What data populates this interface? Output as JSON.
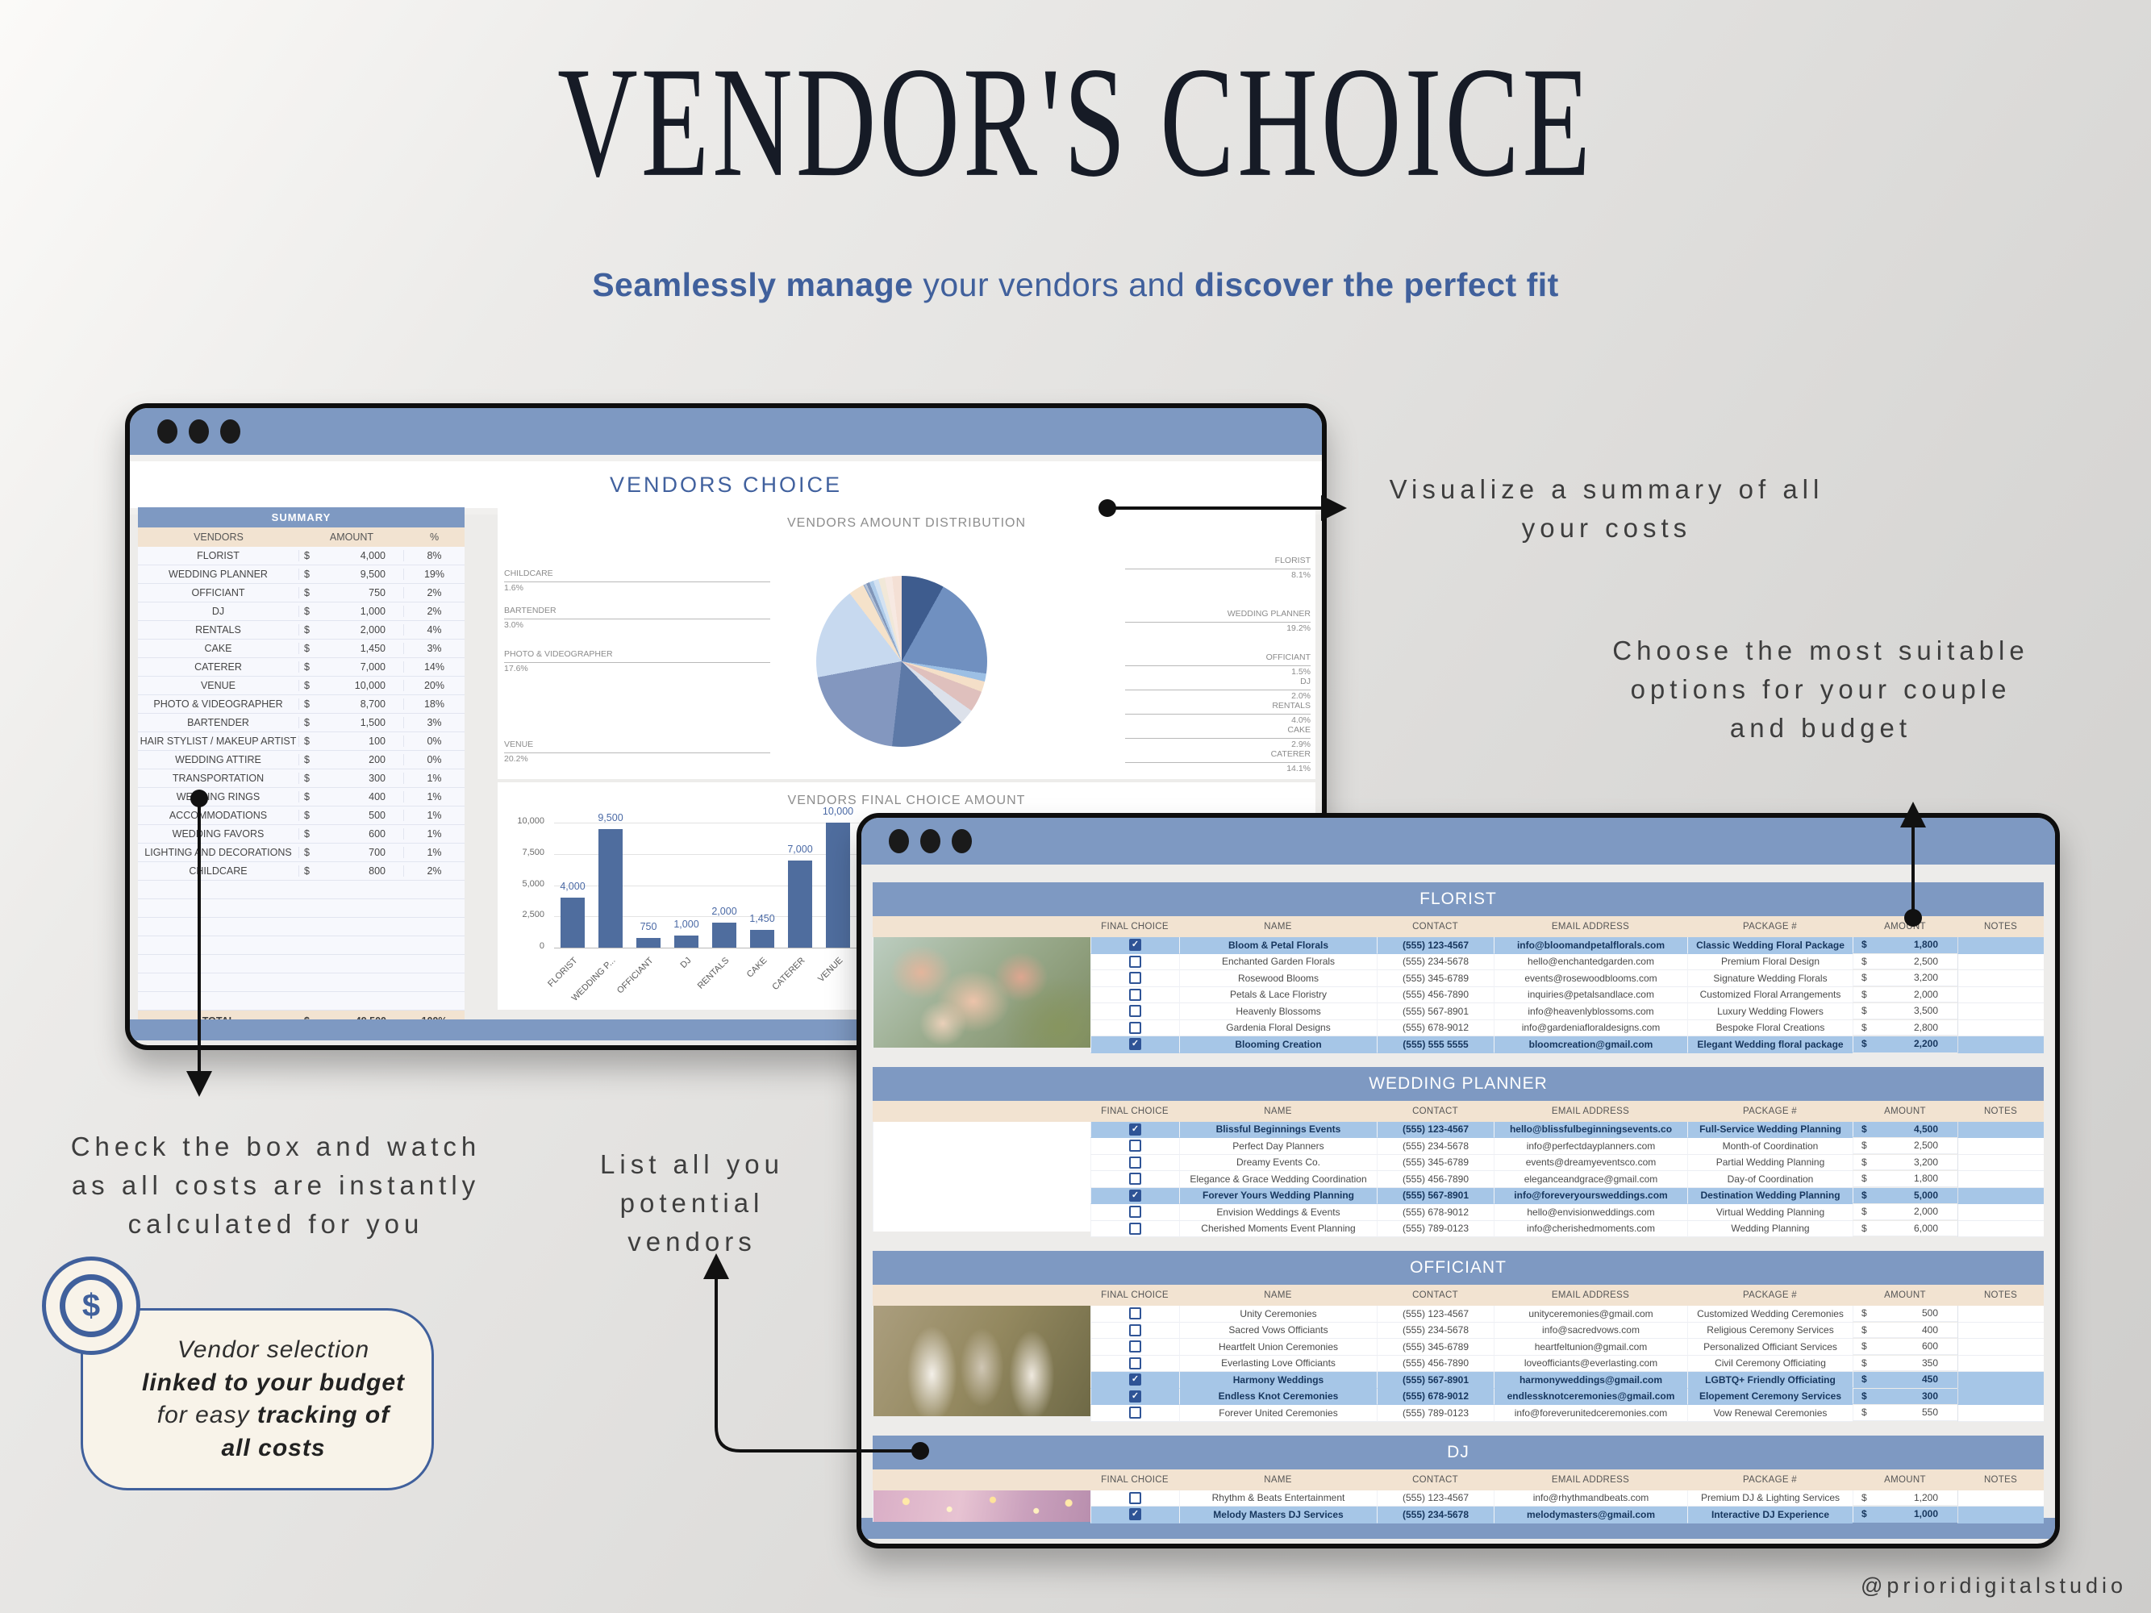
{
  "page": {
    "title": "VENDOR'S CHOICE",
    "subtitle": {
      "bold1": "Seamlessly manage",
      "mid": " your vendors and ",
      "bold2": "discover the perfect fit"
    },
    "handle": "@prioridigitalstudio"
  },
  "annotations": {
    "visualize": "Visualize a summary of all your costs",
    "choose": "Choose the most suitable options for your couple and budget",
    "checkbox": "Check the box and watch as all costs are instantly calculated for you",
    "list": "List all you potential vendors",
    "bubble": {
      "l1": "Vendor selection",
      "l2": "linked to your budget",
      "l3a": "for easy ",
      "l3b": "tracking of",
      "l4": "all costs"
    },
    "dollar_icon": "$"
  },
  "left_window": {
    "sheet_title": "VENDORS CHOICE",
    "summary": {
      "title": "SUMMARY",
      "columns": [
        "VENDORS",
        "AMOUNT",
        "%"
      ],
      "currency": "$",
      "rows": [
        {
          "vendor": "FLORIST",
          "amount": "4,000",
          "pct": "8%"
        },
        {
          "vendor": "WEDDING PLANNER",
          "amount": "9,500",
          "pct": "19%"
        },
        {
          "vendor": "OFFICIANT",
          "amount": "750",
          "pct": "2%"
        },
        {
          "vendor": "DJ",
          "amount": "1,000",
          "pct": "2%"
        },
        {
          "vendor": "RENTALS",
          "amount": "2,000",
          "pct": "4%"
        },
        {
          "vendor": "CAKE",
          "amount": "1,450",
          "pct": "3%"
        },
        {
          "vendor": "CATERER",
          "amount": "7,000",
          "pct": "14%"
        },
        {
          "vendor": "VENUE",
          "amount": "10,000",
          "pct": "20%"
        },
        {
          "vendor": "PHOTO & VIDEOGRAPHER",
          "amount": "8,700",
          "pct": "18%"
        },
        {
          "vendor": "BARTENDER",
          "amount": "1,500",
          "pct": "3%"
        },
        {
          "vendor": "HAIR STYLIST / MAKEUP ARTIST",
          "amount": "100",
          "pct": "0%"
        },
        {
          "vendor": "WEDDING ATTIRE",
          "amount": "200",
          "pct": "0%"
        },
        {
          "vendor": "TRANSPORTATION",
          "amount": "300",
          "pct": "1%"
        },
        {
          "vendor": "WEDDING RINGS",
          "amount": "400",
          "pct": "1%"
        },
        {
          "vendor": "ACCOMMODATIONS",
          "amount": "500",
          "pct": "1%"
        },
        {
          "vendor": "WEDDING FAVORS",
          "amount": "600",
          "pct": "1%"
        },
        {
          "vendor": "LIGHTING AND DECORATIONS",
          "amount": "700",
          "pct": "1%"
        },
        {
          "vendor": "CHILDCARE",
          "amount": "800",
          "pct": "2%"
        }
      ],
      "empty_rows": 7,
      "total_label": "TOTAL",
      "total_amount": "49,500",
      "total_pct": "100%"
    }
  },
  "chart_data": [
    {
      "type": "pie",
      "title": "VENDORS AMOUNT DISTRIBUTION",
      "slices": [
        {
          "name": "FLORIST",
          "value": 4000,
          "pct": 8.1,
          "color": "#3e5c8e"
        },
        {
          "name": "WEDDING PLANNER",
          "value": 9500,
          "pct": 19.2,
          "color": "#7090c0"
        },
        {
          "name": "OFFICIANT",
          "value": 750,
          "pct": 1.5,
          "color": "#9cbfe4"
        },
        {
          "name": "DJ",
          "value": 1000,
          "pct": 2.0,
          "color": "#f4dfc8"
        },
        {
          "name": "RENTALS",
          "value": 2000,
          "pct": 4.0,
          "color": "#dfc0bd"
        },
        {
          "name": "CAKE",
          "value": 1450,
          "pct": 2.9,
          "color": "#dce1ea"
        },
        {
          "name": "CATERER",
          "value": 7000,
          "pct": 14.1,
          "color": "#5d79a7"
        },
        {
          "name": "VENUE",
          "value": 10000,
          "pct": 20.2,
          "color": "#8397bf"
        },
        {
          "name": "PHOTO & VIDEOGRAPHER",
          "value": 8700,
          "pct": 17.6,
          "color": "#c7d9ef"
        },
        {
          "name": "BARTENDER",
          "value": 1500,
          "pct": 3.0,
          "color": "#f5e2ca"
        },
        {
          "name": "HAIR STYLIST / MAKEUP ARTIST",
          "value": 100,
          "pct": 0.2,
          "color": "#93a9c8"
        },
        {
          "name": "WEDDING ATTIRE",
          "value": 200,
          "pct": 0.4,
          "color": "#b4c2d8"
        },
        {
          "name": "TRANSPORTATION",
          "value": 300,
          "pct": 0.6,
          "color": "#8095b8"
        },
        {
          "name": "WEDDING RINGS",
          "value": 400,
          "pct": 0.8,
          "color": "#aecbe9"
        },
        {
          "name": "ACCOMMODATIONS",
          "value": 500,
          "pct": 1.0,
          "color": "#d3e2f2"
        },
        {
          "name": "WEDDING FAVORS",
          "value": 600,
          "pct": 1.2,
          "color": "#f1e8d8"
        },
        {
          "name": "LIGHTING AND DECORATIONS",
          "value": 700,
          "pct": 1.4,
          "color": "#f7e9e2"
        },
        {
          "name": "CHILDCARE",
          "value": 800,
          "pct": 1.6,
          "color": "#f4e0d5"
        }
      ],
      "left_callouts": [
        {
          "name": "CHILDCARE",
          "pct": "1.6%",
          "top": 78
        },
        {
          "name": "BARTENDER",
          "pct": "3.0%",
          "top": 124
        },
        {
          "name": "PHOTO & VIDEOGRAPHER",
          "pct": "17.6%",
          "top": 178
        },
        {
          "name": "VENUE",
          "pct": "20.2%",
          "top": 290
        }
      ],
      "right_callouts": [
        {
          "name": "FLORIST",
          "pct": "8.1%",
          "top": 62
        },
        {
          "name": "WEDDING PLANNER",
          "pct": "19.2%",
          "top": 128
        },
        {
          "name": "OFFICIANT",
          "pct": "1.5%",
          "top": 182
        },
        {
          "name": "DJ",
          "pct": "2.0%",
          "top": 212
        },
        {
          "name": "RENTALS",
          "pct": "4.0%",
          "top": 242
        },
        {
          "name": "CAKE",
          "pct": "2.9%",
          "top": 272
        },
        {
          "name": "CATERER",
          "pct": "14.1%",
          "top": 302
        }
      ]
    },
    {
      "type": "bar",
      "title": "VENDORS FINAL CHOICE AMOUNT",
      "categories": [
        "FLORIST",
        "WEDDING P...",
        "OFFICIANT",
        "DJ",
        "RENTALS",
        "CAKE",
        "CATERER",
        "VENUE"
      ],
      "values": [
        4000,
        9500,
        750,
        1000,
        2000,
        1450,
        7000,
        10000
      ],
      "value_labels": [
        "4,000",
        "9,500",
        "750",
        "1,000",
        "2,000",
        "1,450",
        "7,000",
        "10,000"
      ],
      "ylim": [
        0,
        10000
      ],
      "yticks": [
        {
          "v": 0,
          "label": "0"
        },
        {
          "v": 2500,
          "label": "2,500"
        },
        {
          "v": 5000,
          "label": "5,000"
        },
        {
          "v": 7500,
          "label": "7,500"
        },
        {
          "v": 10000,
          "label": "10,000"
        }
      ],
      "bar_color": "#4f6d9e"
    }
  ],
  "right_window": {
    "columns": [
      "FINAL CHOICE",
      "NAME",
      "CONTACT",
      "EMAIL ADDRESS",
      "PACKAGE #",
      "AMOUNT",
      "NOTES"
    ],
    "currency": "$",
    "check_glyph": "✓",
    "sections": [
      {
        "title": "FLORIST",
        "photo": "florist-photo",
        "photo_class": "photo-florist",
        "rows": [
          {
            "checked": true,
            "name": "Bloom & Petal Florals",
            "contact": "(555) 123-4567",
            "email": "info@bloomandpetalflorals.com",
            "package": "Classic Wedding Floral Package",
            "amount": "1,800"
          },
          {
            "checked": false,
            "name": "Enchanted Garden Florals",
            "contact": "(555) 234-5678",
            "email": "hello@enchantedgarden.com",
            "package": "Premium Floral Design",
            "amount": "2,500"
          },
          {
            "checked": false,
            "name": "Rosewood Blooms",
            "contact": "(555) 345-6789",
            "email": "events@rosewoodblooms.com",
            "package": "Signature Wedding Florals",
            "amount": "3,200"
          },
          {
            "checked": false,
            "name": "Petals & Lace Floristry",
            "contact": "(555) 456-7890",
            "email": "inquiries@petalsandlace.com",
            "package": "Customized Floral Arrangements",
            "amount": "2,000"
          },
          {
            "checked": false,
            "name": "Heavenly Blossoms",
            "contact": "(555) 567-8901",
            "email": "info@heavenlyblossoms.com",
            "package": "Luxury Wedding Flowers",
            "amount": "3,500"
          },
          {
            "checked": false,
            "name": "Gardenia Floral Designs",
            "contact": "(555) 678-9012",
            "email": "info@gardeniafloraldesigns.com",
            "package": "Bespoke Floral Creations",
            "amount": "2,800"
          },
          {
            "checked": true,
            "name": "Blooming Creation",
            "contact": "(555) 555 5555",
            "email": "bloomcreation@gmail.com",
            "package": "Elegant Wedding floral package",
            "amount": "2,200"
          }
        ]
      },
      {
        "title": "WEDDING PLANNER",
        "photo": "wedding-planner-photo",
        "photo_class": "photo-planner",
        "rows": [
          {
            "checked": true,
            "name": "Blissful Beginnings Events",
            "contact": "(555) 123-4567",
            "email": "hello@blissfulbeginningsevents.co",
            "package": "Full-Service Wedding Planning",
            "amount": "4,500"
          },
          {
            "checked": false,
            "name": "Perfect Day Planners",
            "contact": "(555) 234-5678",
            "email": "info@perfectdayplanners.com",
            "package": "Month-of Coordination",
            "amount": "2,500"
          },
          {
            "checked": false,
            "name": "Dreamy Events Co.",
            "contact": "(555) 345-6789",
            "email": "events@dreamyeventsco.com",
            "package": "Partial Wedding Planning",
            "amount": "3,200"
          },
          {
            "checked": false,
            "name": "Elegance & Grace Wedding Coordination",
            "contact": "(555) 456-7890",
            "email": "eleganceandgrace@gmail.com",
            "package": "Day-of Coordination",
            "amount": "1,800"
          },
          {
            "checked": true,
            "name": "Forever Yours Wedding Planning",
            "contact": "(555) 567-8901",
            "email": "info@foreveryoursweddings.com",
            "package": "Destination Wedding Planning",
            "amount": "5,000"
          },
          {
            "checked": false,
            "name": "Envision Weddings & Events",
            "contact": "(555) 678-9012",
            "email": "hello@envisionweddings.com",
            "package": "Virtual Wedding Planning",
            "amount": "2,000"
          },
          {
            "checked": false,
            "name": "Cherished Moments Event Planning",
            "contact": "(555) 789-0123",
            "email": "info@cherishedmoments.com",
            "package": "Wedding Planning",
            "amount": "6,000"
          }
        ]
      },
      {
        "title": "OFFICIANT",
        "photo": "officiant-photo",
        "photo_class": "photo-officiant",
        "rows": [
          {
            "checked": false,
            "name": "Unity Ceremonies",
            "contact": "(555) 123-4567",
            "email": "unityceremonies@gmail.com",
            "package": "Customized Wedding Ceremonies",
            "amount": "500"
          },
          {
            "checked": false,
            "name": "Sacred Vows Officiants",
            "contact": "(555) 234-5678",
            "email": "info@sacredvows.com",
            "package": "Religious Ceremony Services",
            "amount": "400"
          },
          {
            "checked": false,
            "name": "Heartfelt Union Ceremonies",
            "contact": "(555) 345-6789",
            "email": "heartfeltunion@gmail.com",
            "package": "Personalized Officiant Services",
            "amount": "600"
          },
          {
            "checked": false,
            "name": "Everlasting Love Officiants",
            "contact": "(555) 456-7890",
            "email": "loveofficiants@everlasting.com",
            "package": "Civil Ceremony Officiating",
            "amount": "350"
          },
          {
            "checked": true,
            "name": "Harmony Weddings",
            "contact": "(555) 567-8901",
            "email": "harmonyweddings@gmail.com",
            "package": "LGBTQ+ Friendly Officiating",
            "amount": "450"
          },
          {
            "checked": true,
            "name": "Endless Knot Ceremonies",
            "contact": "(555) 678-9012",
            "email": "endlessknotceremonies@gmail.com",
            "package": "Elopement Ceremony Services",
            "amount": "300"
          },
          {
            "checked": false,
            "name": "Forever United Ceremonies",
            "contact": "(555) 789-0123",
            "email": "info@foreverunitedceremonies.com",
            "package": "Vow Renewal Ceremonies",
            "amount": "550"
          }
        ]
      },
      {
        "title": "DJ",
        "photo": "dj-photo",
        "photo_class": "photo-dj",
        "rows": [
          {
            "checked": false,
            "name": "Rhythm & Beats Entertainment",
            "contact": "(555) 123-4567",
            "email": "info@rhythmandbeats.com",
            "package": "Premium DJ & Lighting Services",
            "amount": "1,200"
          },
          {
            "checked": true,
            "name": "Melody Masters DJ Services",
            "contact": "(555) 234-5678",
            "email": "melodymasters@gmail.com",
            "package": "Interactive DJ Experience",
            "amount": "1,000"
          }
        ]
      }
    ]
  },
  "colors": {
    "accent_blue": "#7e99c2",
    "navy": "#40609c",
    "highlight_row": "#a6c6e7",
    "header_beige": "#f2e3d1",
    "bar_color": "#4f6d9e"
  }
}
